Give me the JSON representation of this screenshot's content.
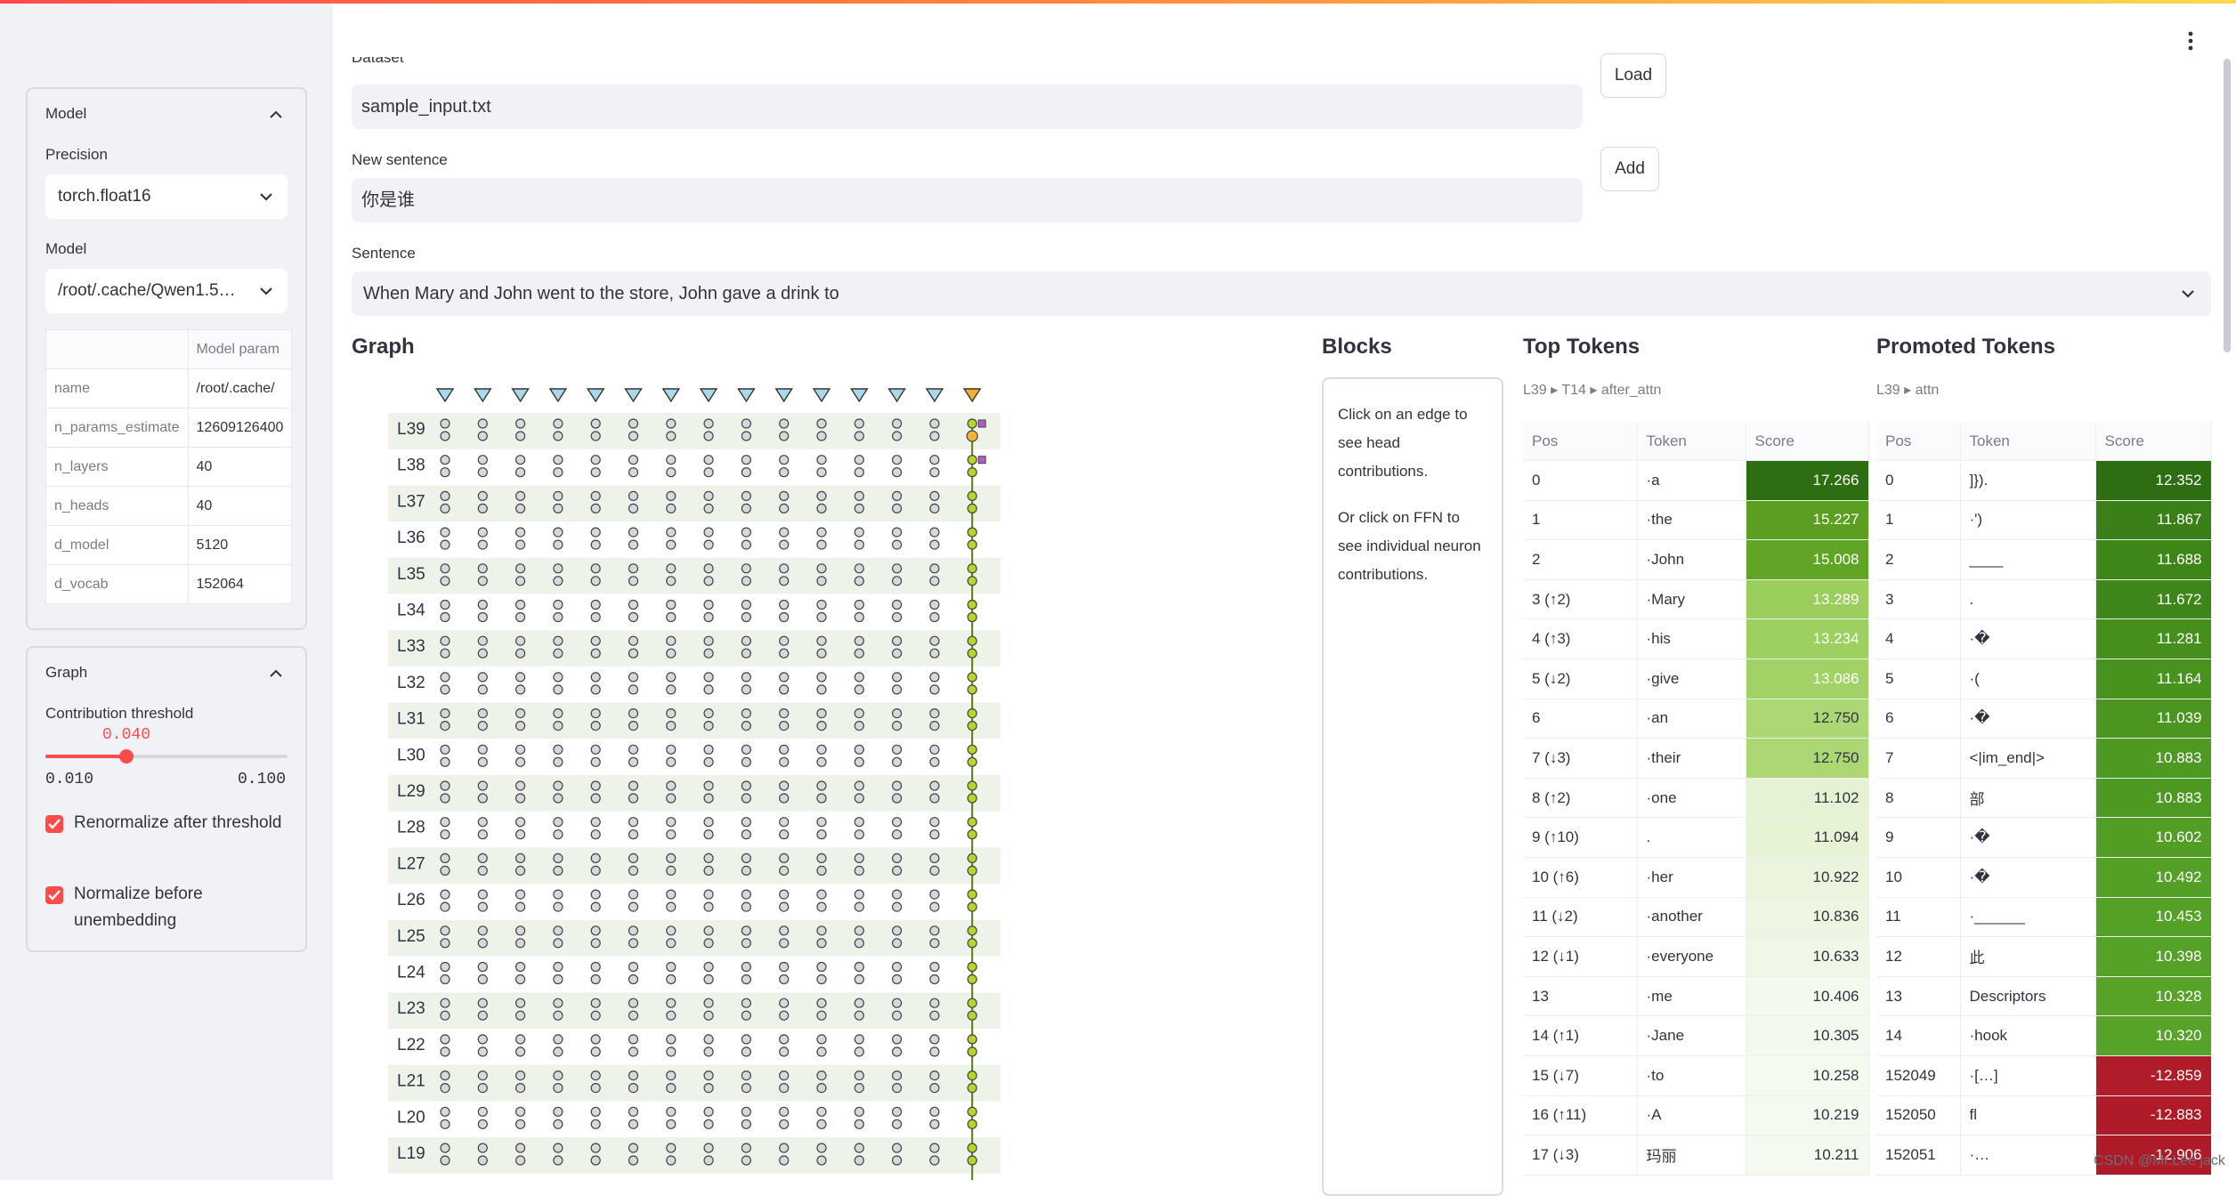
{
  "sidebar": {
    "model_panel": {
      "title": "Model",
      "precision_label": "Precision",
      "precision_value": "torch.float16",
      "model_label": "Model",
      "model_value": "/root/.cache/Qwen1.5…",
      "table_header": "Model param",
      "rows": [
        {
          "key": "name",
          "value": "/root/.cache/"
        },
        {
          "key": "n_params_estimate",
          "value": "12609126400"
        },
        {
          "key": "n_layers",
          "value": "40"
        },
        {
          "key": "n_heads",
          "value": "40"
        },
        {
          "key": "d_model",
          "value": "5120"
        },
        {
          "key": "d_vocab",
          "value": "152064"
        }
      ]
    },
    "graph_panel": {
      "title": "Graph",
      "threshold_label": "Contribution threshold",
      "threshold_value": "0.040",
      "threshold_fraction": 0.3333,
      "threshold_min": "0.010",
      "threshold_max": "0.100",
      "renorm_label": "Renormalize after threshold",
      "renorm_checked": true,
      "normalize_label": "Normalize before unembedding",
      "normalize_checked": true
    }
  },
  "main": {
    "dataset_label": "Dataset",
    "dataset_value": "sample_input.txt",
    "load_button": "Load",
    "new_sentence_label": "New sentence",
    "new_sentence_value": "你是谁",
    "add_button": "Add",
    "sentence_label": "Sentence",
    "sentence_value": "When Mary and John went to the store, John gave a drink to"
  },
  "graph": {
    "title": "Graph",
    "layers": [
      "L39",
      "L38",
      "L37",
      "L36",
      "L35",
      "L34",
      "L33",
      "L32",
      "L31",
      "L30",
      "L29",
      "L28",
      "L27",
      "L26",
      "L25",
      "L24",
      "L23",
      "L22",
      "L21",
      "L20",
      "L19"
    ],
    "token_columns": 15,
    "selected_column": 14
  },
  "blocks": {
    "title": "Blocks",
    "text1": "Click on an edge to see head contributions.",
    "text2": "Or click on FFN to see individual neuron contributions."
  },
  "top_tokens": {
    "title": "Top Tokens",
    "crumb": [
      "L39",
      "T14",
      "after_attn"
    ],
    "headers": [
      "Pos",
      "Token",
      "Score"
    ],
    "rows": [
      {
        "pos": "0",
        "tok": "·a",
        "score": "17.266",
        "dir": "",
        "color": "#2e6e12"
      },
      {
        "pos": "1",
        "tok": "·the",
        "score": "15.227",
        "dir": "",
        "color": "#5a9e22"
      },
      {
        "pos": "2",
        "tok": "·John",
        "score": "15.008",
        "dir": "",
        "color": "#60a526"
      },
      {
        "pos": "3 (↑2)",
        "tok": "·Mary",
        "score": "13.289",
        "dir": "up",
        "color": "#9cce5e"
      },
      {
        "pos": "4 (↑3)",
        "tok": "·his",
        "score": "13.234",
        "dir": "up",
        "color": "#9ecf61"
      },
      {
        "pos": "5 (↓2)",
        "tok": "·give",
        "score": "13.086",
        "dir": "down",
        "color": "#a2d266"
      },
      {
        "pos": "6",
        "tok": "·an",
        "score": "12.750",
        "dir": "",
        "color": "#abd774"
      },
      {
        "pos": "7 (↓3)",
        "tok": "·their",
        "score": "12.750",
        "dir": "down",
        "color": "#abd774"
      },
      {
        "pos": "8 (↑2)",
        "tok": "·one",
        "score": "11.102",
        "dir": "up",
        "color": "#e5f3d4"
      },
      {
        "pos": "9 (↑10)",
        "tok": ".",
        "score": "11.094",
        "dir": "up",
        "color": "#e6f3d5"
      },
      {
        "pos": "10 (↑6)",
        "tok": "·her",
        "score": "10.922",
        "dir": "up",
        "color": "#ebf5de"
      },
      {
        "pos": "11 (↓2)",
        "tok": "·another",
        "score": "10.836",
        "dir": "down",
        "color": "#edf6e1"
      },
      {
        "pos": "12 (↓1)",
        "tok": "·everyone",
        "score": "10.633",
        "dir": "down",
        "color": "#f0f7e6"
      },
      {
        "pos": "13",
        "tok": "·me",
        "score": "10.406",
        "dir": "",
        "color": "#f3f9ec"
      },
      {
        "pos": "14 (↑1)",
        "tok": "·Jane",
        "score": "10.305",
        "dir": "up",
        "color": "#f4f9ee"
      },
      {
        "pos": "15 (↓7)",
        "tok": "·to",
        "score": "10.258",
        "dir": "down",
        "color": "#f5faef"
      },
      {
        "pos": "16 (↑11)",
        "tok": "·A",
        "score": "10.219",
        "dir": "up",
        "color": "#f5faef"
      },
      {
        "pos": "17 (↓3)",
        "tok": "玛丽",
        "score": "10.211",
        "dir": "down",
        "color": "#f5faf0"
      }
    ]
  },
  "promoted_tokens": {
    "title": "Promoted Tokens",
    "crumb": [
      "L39",
      "attn"
    ],
    "headers": [
      "Pos",
      "Token",
      "Score"
    ],
    "rows": [
      {
        "pos": "0",
        "tok": "]}).",
        "score": "12.352",
        "color": "#2e6e12"
      },
      {
        "pos": "1",
        "tok": "·')",
        "score": "11.867",
        "color": "#3a7f17"
      },
      {
        "pos": "2",
        "tok": "____",
        "score": "11.688",
        "color": "#3f8619"
      },
      {
        "pos": "3",
        "tok": ".",
        "score": "11.672",
        "color": "#3f861a"
      },
      {
        "pos": "4",
        "tok": "·�",
        "score": "11.281",
        "color": "#468f1d"
      },
      {
        "pos": "5",
        "tok": "·(",
        "score": "11.164",
        "color": "#48921e"
      },
      {
        "pos": "6",
        "tok": "·�",
        "score": "11.039",
        "color": "#4b9520"
      },
      {
        "pos": "7",
        "tok": "<|im_end|>",
        "score": "10.883",
        "color": "#4e9922"
      },
      {
        "pos": "8",
        "tok": "部",
        "score": "10.883",
        "color": "#4e9922"
      },
      {
        "pos": "9",
        "tok": "·�",
        "score": "10.602",
        "color": "#529d24"
      },
      {
        "pos": "10",
        "tok": "·�",
        "score": "10.492",
        "color": "#549f25"
      },
      {
        "pos": "11",
        "tok": "·______",
        "score": "10.453",
        "color": "#55a026"
      },
      {
        "pos": "12",
        "tok": "此",
        "score": "10.398",
        "color": "#56a127"
      },
      {
        "pos": "13",
        "tok": "Descriptors",
        "score": "10.328",
        "color": "#57a227"
      },
      {
        "pos": "14",
        "tok": "·hook",
        "score": "10.320",
        "color": "#57a228"
      },
      {
        "pos": "152049",
        "tok": "·[…]",
        "score": "-12.859",
        "color": "#b01c2a"
      },
      {
        "pos": "152050",
        "tok": "fl",
        "score": "-12.883",
        "color": "#af1b29"
      },
      {
        "pos": "152051",
        "tok": "·…",
        "score": "-12.906",
        "color": "#ae1a28"
      }
    ]
  },
  "watermark": "CSDN @Mr.Lee jack"
}
